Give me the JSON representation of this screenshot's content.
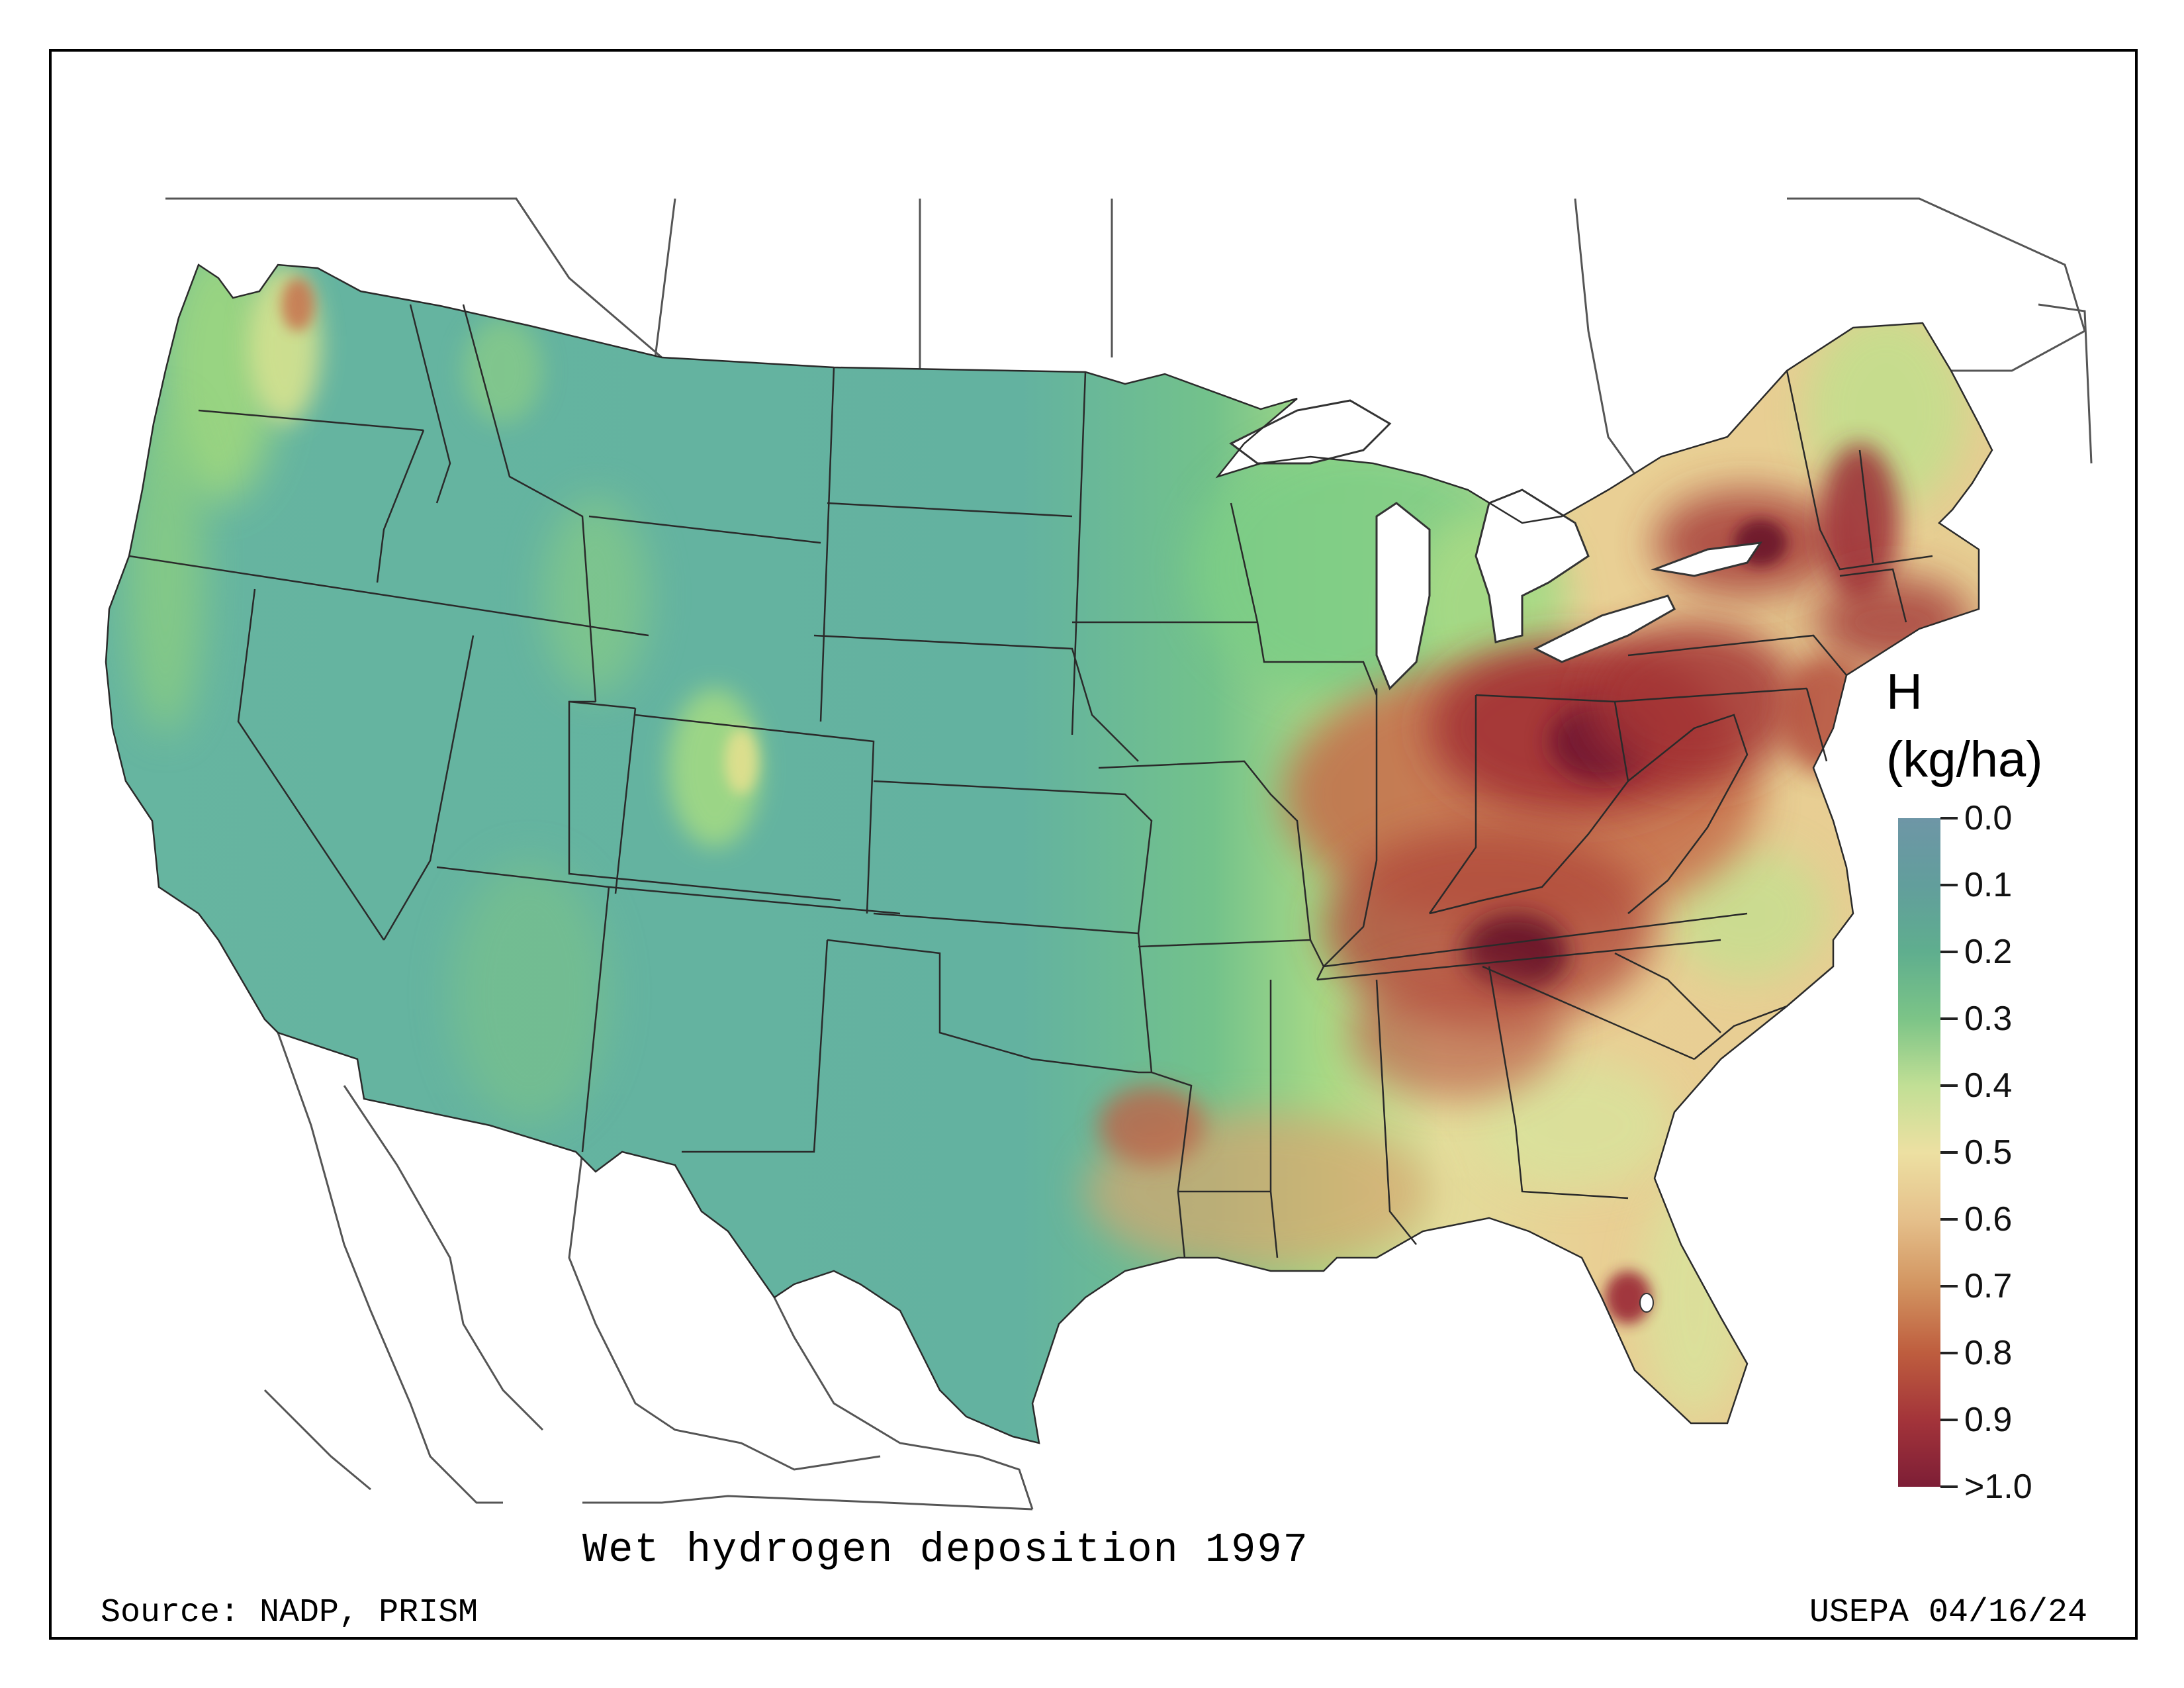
{
  "map": {
    "title": "Wet hydrogen deposition 1997",
    "source": "Source: NADP, PRISM",
    "credit": "USEPA 04/16/24"
  },
  "legend": {
    "title_line1": "H",
    "title_line2": "(kg/ha)",
    "ticks": [
      "0.0",
      "0.1",
      "0.2",
      "0.3",
      "0.4",
      "0.5",
      "0.6",
      "0.7",
      "0.8",
      "0.9",
      ">1.0"
    ],
    "colors": [
      "#6b9aa8",
      "#62a79a",
      "#66b98c",
      "#8fcf85",
      "#d8e49a",
      "#efdfa0",
      "#e1b780",
      "#c98050",
      "#b34e3a",
      "#9c2c37",
      "#7c1f33"
    ]
  },
  "colors": {
    "west_base": "#62b3a0",
    "great_plains": "#6cc08e",
    "midwest_transition": "#a5d885",
    "southeast_base": "#e7d49a",
    "hotspot": "#8e2232",
    "hotspot_core": "#6a1329",
    "boundary": "#222222"
  }
}
